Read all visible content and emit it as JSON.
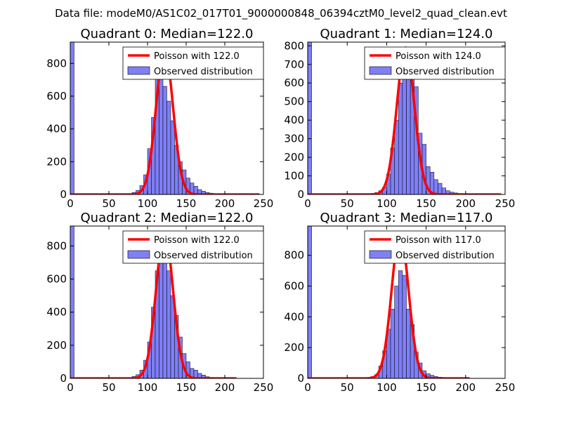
{
  "suptitle": "Data file: modeM0/AS1C02_017T01_9000000848_06394cztM0_level2_quad_clean.evt",
  "colors": {
    "hist": "#7f7ff7",
    "hist_edge": "#000000",
    "poisson": "#ff0000"
  },
  "chart_data": [
    {
      "type": "bar",
      "title": "Quadrant 0: Median=122.0",
      "xlim": [
        0,
        250
      ],
      "ylim": [
        0,
        930
      ],
      "xticks": [
        "0",
        "50",
        "100",
        "150",
        "200",
        "250"
      ],
      "yticks": [
        "0",
        "200",
        "400",
        "600",
        "800"
      ],
      "xtick_values": [
        0,
        50,
        100,
        150,
        200,
        250
      ],
      "ytick_values": [
        0,
        200,
        400,
        600,
        800
      ],
      "legend": {
        "poisson_label": "Poisson with 122.0",
        "hist_label": "Observed distribution",
        "position": "upper-right"
      },
      "median": 122.0,
      "poisson_peak": 880,
      "poisson_sigma": 11.05,
      "line_range": [
        0,
        245
      ],
      "bin_width": 5,
      "bins_start": [
        0,
        75,
        80,
        85,
        90,
        95,
        100,
        105,
        110,
        115,
        120,
        125,
        130,
        135,
        140,
        145,
        150,
        155,
        160,
        165,
        170,
        175,
        180,
        185,
        190
      ],
      "counts": [
        930,
        5,
        12,
        25,
        55,
        120,
        280,
        470,
        720,
        730,
        660,
        570,
        450,
        300,
        200,
        150,
        100,
        70,
        50,
        30,
        20,
        12,
        8,
        4,
        2
      ]
    },
    {
      "type": "bar",
      "title": "Quadrant 1: Median=124.0",
      "xlim": [
        0,
        250
      ],
      "ylim": [
        0,
        820
      ],
      "xticks": [
        "0",
        "50",
        "100",
        "150",
        "200",
        "250"
      ],
      "yticks": [
        "0",
        "100",
        "200",
        "300",
        "400",
        "500",
        "600",
        "700",
        "800"
      ],
      "xtick_values": [
        0,
        50,
        100,
        150,
        200,
        250
      ],
      "ytick_values": [
        0,
        100,
        200,
        300,
        400,
        500,
        600,
        700,
        800
      ],
      "legend": {
        "poisson_label": "Poisson with 124.0",
        "hist_label": "Observed distribution",
        "position": "upper-right"
      },
      "median": 124.0,
      "poisson_peak": 790,
      "poisson_sigma": 11.14,
      "line_range": [
        0,
        245
      ],
      "bin_width": 5,
      "bins_start": [
        0,
        80,
        85,
        90,
        95,
        100,
        105,
        110,
        115,
        120,
        125,
        130,
        135,
        140,
        145,
        150,
        155,
        160,
        165,
        170,
        175,
        180,
        185,
        190,
        195
      ],
      "counts": [
        820,
        5,
        10,
        20,
        40,
        110,
        250,
        400,
        600,
        700,
        760,
        650,
        580,
        330,
        270,
        150,
        120,
        80,
        60,
        35,
        20,
        12,
        8,
        5,
        2
      ]
    },
    {
      "type": "bar",
      "title": "Quadrant 2: Median=122.0",
      "xlim": [
        0,
        250
      ],
      "ylim": [
        0,
        920
      ],
      "xticks": [
        "0",
        "50",
        "100",
        "150",
        "200",
        "250"
      ],
      "yticks": [
        "0",
        "200",
        "400",
        "600",
        "800"
      ],
      "xtick_values": [
        0,
        50,
        100,
        150,
        200,
        250
      ],
      "ytick_values": [
        0,
        200,
        400,
        600,
        800
      ],
      "legend": {
        "poisson_label": "Poisson with 122.0",
        "hist_label": "Observed distribution",
        "position": "upper-right"
      },
      "median": 122.0,
      "poisson_peak": 880,
      "poisson_sigma": 11.05,
      "line_range": [
        0,
        215
      ],
      "bin_width": 5,
      "bins_start": [
        0,
        75,
        80,
        85,
        90,
        95,
        100,
        105,
        110,
        115,
        120,
        125,
        130,
        135,
        140,
        145,
        150,
        155,
        160,
        165,
        170,
        175,
        180,
        185,
        190,
        195
      ],
      "counts": [
        920,
        5,
        12,
        22,
        50,
        110,
        220,
        430,
        650,
        800,
        760,
        650,
        500,
        380,
        250,
        150,
        100,
        60,
        50,
        30,
        20,
        10,
        6,
        4,
        2,
        2
      ]
    },
    {
      "type": "bar",
      "title": "Quadrant 3: Median=117.0",
      "xlim": [
        0,
        250
      ],
      "ylim": [
        0,
        990
      ],
      "xticks": [
        "0",
        "50",
        "100",
        "150",
        "200",
        "250"
      ],
      "yticks": [
        "0",
        "200",
        "400",
        "600",
        "800"
      ],
      "xtick_values": [
        0,
        50,
        100,
        150,
        200,
        250
      ],
      "ytick_values": [
        0,
        200,
        400,
        600,
        800
      ],
      "legend": {
        "poisson_label": "Poisson with 117.0",
        "hist_label": "Observed distribution",
        "position": "upper-right"
      },
      "median": 117.0,
      "poisson_peak": 940,
      "poisson_sigma": 10.82,
      "line_range": [
        0,
        205
      ],
      "bin_width": 5,
      "bins_start": [
        0,
        75,
        80,
        85,
        90,
        95,
        100,
        105,
        110,
        115,
        120,
        125,
        130,
        135,
        140,
        145,
        150,
        155,
        160,
        165,
        170,
        175,
        180,
        185
      ],
      "counts": [
        990,
        5,
        12,
        25,
        80,
        180,
        320,
        450,
        600,
        700,
        670,
        450,
        350,
        170,
        100,
        50,
        30,
        20,
        12,
        8,
        5,
        3,
        2,
        1
      ]
    }
  ]
}
